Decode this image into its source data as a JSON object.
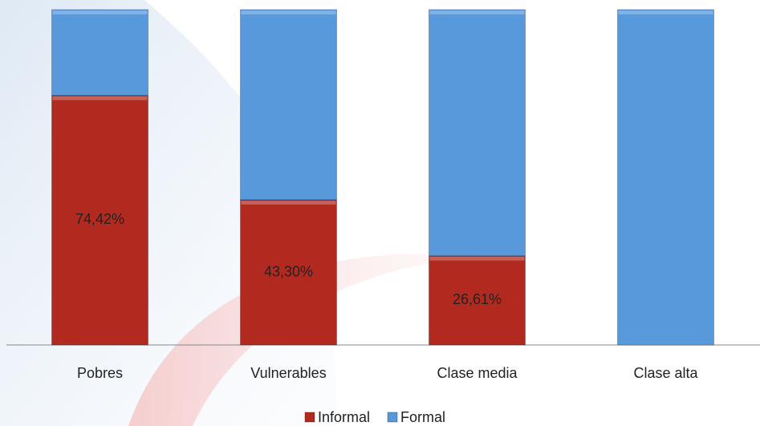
{
  "chart_data": {
    "type": "stacked_bar",
    "categories": [
      "Pobres",
      "Vulnerables",
      "Clase media",
      "Clase alta"
    ],
    "series": [
      {
        "name": "Informal",
        "color": "#b22a1f",
        "values": [
          74.42,
          43.3,
          26.61,
          0
        ],
        "value_labels": [
          "74,42%",
          "43,30%",
          "26,61%",
          null
        ]
      },
      {
        "name": "Formal",
        "color": "#5899dc",
        "values": [
          25.58,
          56.7,
          73.39,
          100
        ]
      }
    ],
    "ylim": [
      0,
      100
    ],
    "legend": "bottom"
  }
}
